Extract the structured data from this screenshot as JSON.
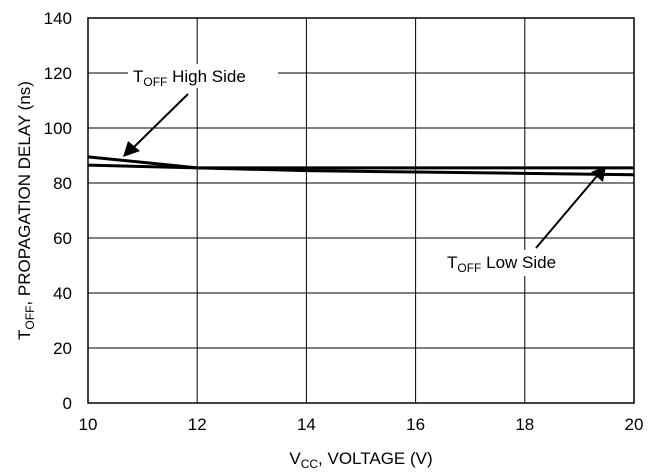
{
  "chart_data": {
    "type": "line",
    "xlabel": {
      "main": "V",
      "sub": "CC",
      "rest": ", VOLTAGE (V)"
    },
    "ylabel": {
      "main": "T",
      "sub": "OFF",
      "rest": ", PROPAGATION DELAY (ns)"
    },
    "xlim": [
      10,
      20
    ],
    "ylim": [
      0,
      140
    ],
    "xticks": [
      10,
      12,
      14,
      16,
      18,
      20
    ],
    "yticks": [
      0,
      20,
      40,
      60,
      80,
      100,
      120,
      140
    ],
    "grid": true,
    "series": [
      {
        "name": {
          "main": "T",
          "sub": "OFF",
          "rest": " High Side"
        },
        "x": [
          10,
          12,
          14,
          16,
          18,
          20
        ],
        "values": [
          89.5,
          85.5,
          84.5,
          84,
          83.5,
          83
        ]
      },
      {
        "name": {
          "main": "T",
          "sub": "OFF",
          "rest": " Low Side"
        },
        "x": [
          10,
          12,
          14,
          16,
          18,
          20
        ],
        "values": [
          86.5,
          85.5,
          85.5,
          85.5,
          85.5,
          85.5
        ]
      }
    ]
  }
}
